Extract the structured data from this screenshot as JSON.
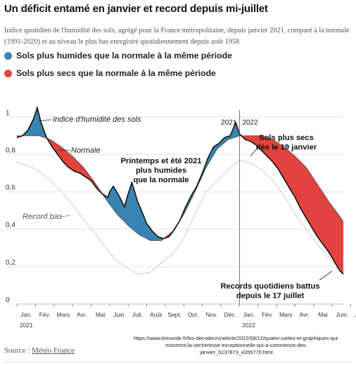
{
  "header": {
    "title": "Un déficit entamé en janvier et record depuis mi-juillet",
    "subtitle": "Indice quotidien de l'humidité des sols, agrégé pour la France métropolitaine, depuis janvier 2021, comparé à la normale (1991-2020) et au niveau le plus bas enregistré quotidiennement depuis août 1958"
  },
  "legend": {
    "humid": {
      "label": "Sols plus humides que la normale à la même période",
      "color": "#3a84b4"
    },
    "dry": {
      "label": "Sols plus secs que la normale à la même période",
      "color": "#e2433e"
    }
  },
  "chart_data": {
    "type": "line",
    "ylim": [
      0,
      1.05
    ],
    "y_ticks": [
      "0",
      "0,2",
      "0,4",
      "0,6",
      "0,8",
      "1"
    ],
    "y_tick_values": [
      0,
      0.2,
      0.4,
      0.6,
      0.8,
      1.0
    ],
    "x_months": [
      "Jan.",
      "Fév.",
      "Mars",
      "Avr.",
      "Mai",
      "Juin",
      "Juil.",
      "Août",
      "Sept.",
      "Oct.",
      "Nov.",
      "Déc.",
      "Jan.",
      "Fév.",
      "Mars",
      "Avr.",
      "Mai",
      "Juin",
      "Juil."
    ],
    "x_years": [
      "2021",
      "2022"
    ],
    "top_year_labels": [
      "2021",
      "2022"
    ],
    "series": [
      {
        "name": "Indice d'humidité des sols",
        "x": [
          0,
          0.3,
          0.6,
          0.9,
          1.1,
          1.3,
          1.6,
          1.9,
          2.2,
          2.5,
          2.8,
          3.1,
          3.4,
          3.7,
          4.0,
          4.3,
          4.6,
          4.9,
          5.0,
          5.2,
          5.5,
          5.8,
          6.0,
          6.2,
          6.5,
          6.8,
          7.0,
          7.3,
          7.6,
          7.9,
          8.2,
          8.5,
          8.8,
          9.1,
          9.4,
          9.7,
          10.0,
          10.3,
          10.6,
          10.9,
          11.2,
          11.5,
          11.8,
          12.0,
          12.3,
          12.6,
          12.9,
          13.2,
          13.5,
          13.8,
          14.1,
          14.4,
          14.7,
          15.0,
          15.3,
          15.6,
          15.9,
          16.2,
          16.5,
          16.8,
          17.1,
          17.4,
          17.6
        ],
        "values": [
          0.89,
          0.9,
          0.93,
          0.99,
          1.05,
          0.97,
          0.89,
          0.84,
          0.8,
          0.76,
          0.73,
          0.71,
          0.7,
          0.68,
          0.66,
          0.62,
          0.59,
          0.57,
          0.6,
          0.63,
          0.58,
          0.52,
          0.59,
          0.65,
          0.55,
          0.48,
          0.43,
          0.39,
          0.36,
          0.35,
          0.36,
          0.4,
          0.45,
          0.52,
          0.58,
          0.63,
          0.7,
          0.78,
          0.84,
          0.86,
          0.89,
          0.9,
          0.97,
          0.91,
          0.88,
          0.87,
          0.85,
          0.82,
          0.79,
          0.76,
          0.72,
          0.67,
          0.62,
          0.57,
          0.51,
          0.46,
          0.41,
          0.36,
          0.32,
          0.28,
          0.23,
          0.18,
          0.16
        ]
      },
      {
        "name": "Normale",
        "x": [
          0,
          0.6,
          1.2,
          1.8,
          2.4,
          3.0,
          3.6,
          4.2,
          4.8,
          5.4,
          6.0,
          6.6,
          7.2,
          7.8,
          8.4,
          9.0,
          9.6,
          10.2,
          10.8,
          11.4,
          12.0,
          12.6,
          13.2,
          13.8,
          14.4,
          15.0,
          15.6,
          16.2,
          16.8,
          17.4,
          17.6
        ],
        "values": [
          0.9,
          0.9,
          0.9,
          0.88,
          0.84,
          0.79,
          0.73,
          0.65,
          0.56,
          0.48,
          0.42,
          0.37,
          0.34,
          0.34,
          0.39,
          0.48,
          0.6,
          0.73,
          0.83,
          0.88,
          0.9,
          0.9,
          0.9,
          0.88,
          0.84,
          0.79,
          0.73,
          0.64,
          0.55,
          0.47,
          0.44
        ]
      },
      {
        "name": "Record bas",
        "x": [
          0,
          0.6,
          1.2,
          1.8,
          2.4,
          3.0,
          3.6,
          4.2,
          4.8,
          5.4,
          6.0,
          6.6,
          7.2,
          7.8,
          8.4,
          9.0,
          9.6,
          10.2,
          10.8,
          11.4,
          12.0,
          12.6,
          13.2,
          13.8,
          14.4,
          15.0,
          15.6,
          16.2,
          16.8,
          17.4,
          17.6
        ],
        "values": [
          0.76,
          0.74,
          0.71,
          0.66,
          0.6,
          0.53,
          0.45,
          0.38,
          0.3,
          0.23,
          0.19,
          0.16,
          0.17,
          0.22,
          0.27,
          0.35,
          0.48,
          0.6,
          0.66,
          0.72,
          0.77,
          0.75,
          0.72,
          0.66,
          0.58,
          0.48,
          0.4,
          0.32,
          0.25,
          0.19,
          0.17
        ]
      }
    ],
    "annotations": [
      "Indice d'humidité des sols",
      "Normale",
      "Record bas",
      "Printemps et été 2021 plus humides que la normale",
      "Sols plus secs dès le 19 janvier",
      "Records quotidiens battus depuis le 17 juillet"
    ],
    "grid": true
  },
  "footer": {
    "url": "https://www.lemonde.fr/les-decodeurs/article/2022/08/12/quatre-cartes-et-graphiques-qui-montrent-la-secheresse-exceptionnelle-qui-a-commence-des-janvier_6137873_4355770.html",
    "source_prefix": "Source : ",
    "source_name": "Météo France"
  }
}
